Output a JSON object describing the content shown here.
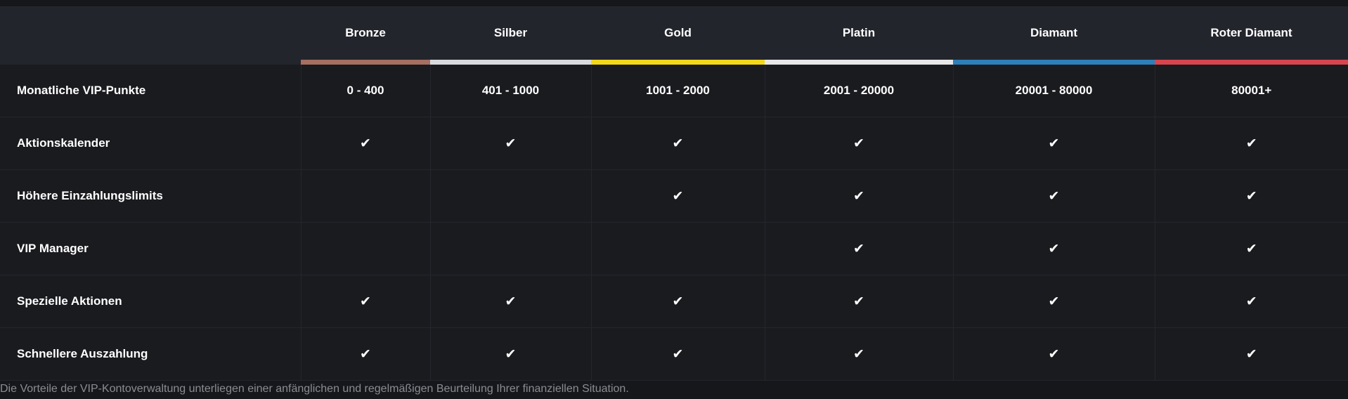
{
  "header": {
    "empty_corner": "",
    "tiers": [
      {
        "label": "Bronze",
        "color": "#a56f62"
      },
      {
        "label": "Silber",
        "color": "#d8dade"
      },
      {
        "label": "Gold",
        "color": "#f3d81a"
      },
      {
        "label": "Platin",
        "color": "#e8e8e8"
      },
      {
        "label": "Diamant",
        "color": "#2d7fb8"
      },
      {
        "label": "Roter Diamant",
        "color": "#d7454f"
      }
    ]
  },
  "rows": [
    {
      "label": "Monatliche VIP-Punkte",
      "cells": [
        "0 - 400",
        "401 - 1000",
        "1001 - 2000",
        "2001 - 20000",
        "20001 - 80000",
        "80001+"
      ]
    },
    {
      "label": "Aktionskalender",
      "cells": [
        "✔",
        "✔",
        "✔",
        "✔",
        "✔",
        "✔"
      ]
    },
    {
      "label": "Höhere Einzahlungslimits",
      "cells": [
        "",
        "",
        "✔",
        "✔",
        "✔",
        "✔"
      ]
    },
    {
      "label": "VIP Manager",
      "cells": [
        "",
        "",
        "",
        "✔",
        "✔",
        "✔"
      ]
    },
    {
      "label": "Spezielle Aktionen",
      "cells": [
        "✔",
        "✔",
        "✔",
        "✔",
        "✔",
        "✔"
      ]
    },
    {
      "label": "Schnellere Auszahlung",
      "cells": [
        "✔",
        "✔",
        "✔",
        "✔",
        "✔",
        "✔"
      ]
    }
  ],
  "footnote": "Die Vorteile der VIP-Kontoverwaltung unterliegen einer anfänglichen und regelmäßigen Beurteilung Ihrer finanziellen Situation."
}
